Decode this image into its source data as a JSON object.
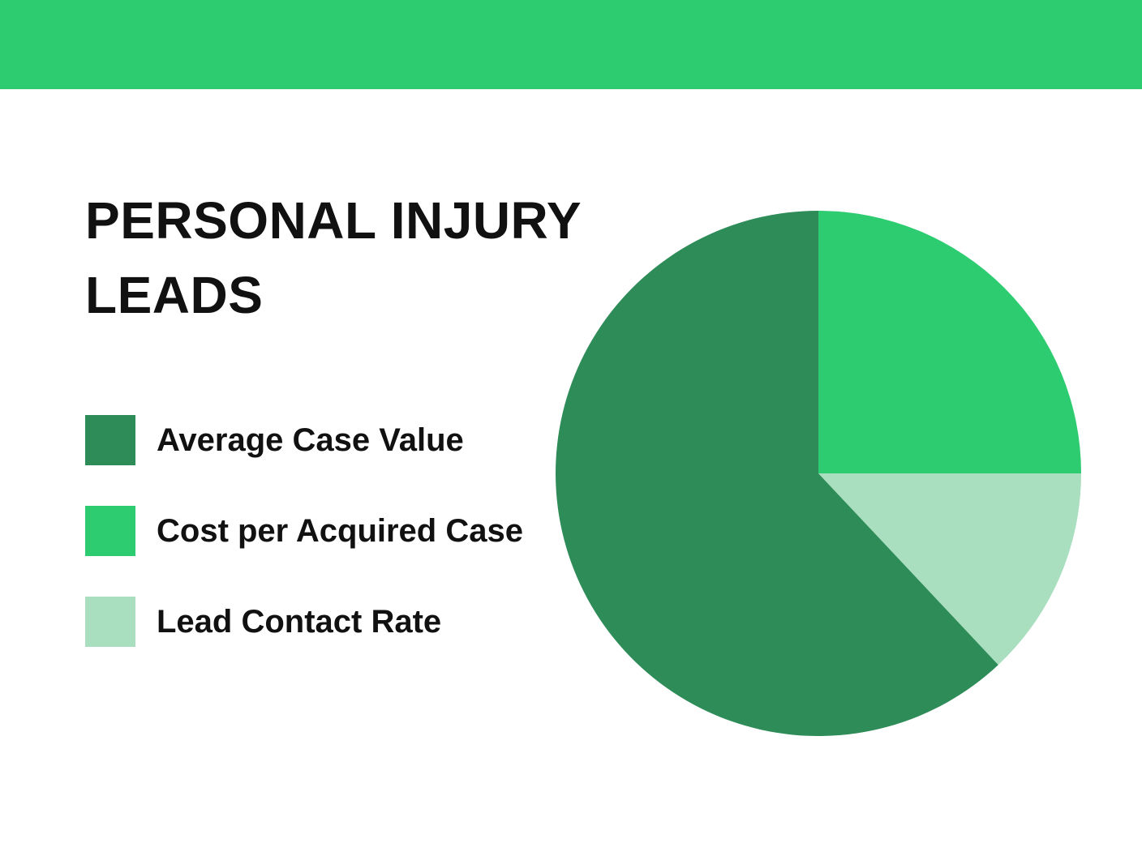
{
  "page": {
    "background": "#FFFFFF",
    "text_color": "#111111"
  },
  "header": {
    "color": "#2ECC71"
  },
  "title": {
    "text": "PERSONAL INJURY LEADS"
  },
  "legend": {
    "items": [
      {
        "label": "Average Case Value",
        "color": "#2D8C58"
      },
      {
        "label": "Cost per Acquired Case",
        "color": "#2ECC71"
      },
      {
        "label": "Lead Contact Rate",
        "color": "#A9DFBF"
      }
    ]
  },
  "chart_data": {
    "type": "pie",
    "title": "PERSONAL INJURY LEADS",
    "slices": [
      {
        "label": "Cost per Acquired Case",
        "value_pct": 25,
        "color": "#2ECC71"
      },
      {
        "label": "Lead Contact Rate",
        "value_pct": 13,
        "color": "#A9DFBF"
      },
      {
        "label": "Average Case Value",
        "value_pct": 62,
        "color": "#2D8C58"
      }
    ],
    "start_angle_deg": 0,
    "direction": "clockwise",
    "legend_position": "left",
    "data_labels_shown": false
  }
}
